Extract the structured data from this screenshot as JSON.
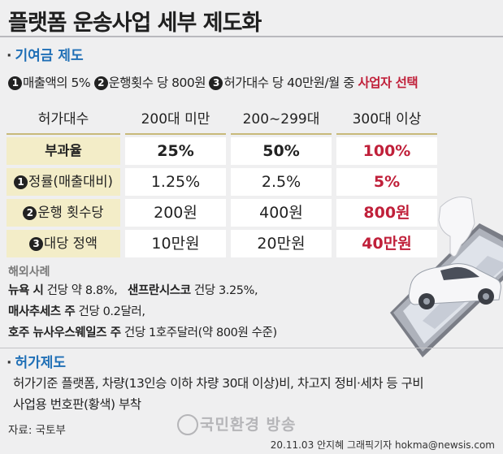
{
  "title": "플랫폼 운송사업 세부 제도화",
  "section1": {
    "dot": "·",
    "title": "기여금 제도"
  },
  "contribution_line": {
    "n1": "1",
    "t1": "매출액의 5%",
    "n2": "2",
    "t2": "운행횟수 당 800원",
    "n3": "3",
    "t3": "허가대수 당 40만원/월 중",
    "emph": "사업자 선택"
  },
  "table": {
    "header_label": "허가대수",
    "columns": [
      "200대 미만",
      "200∼299대",
      "300대 이상"
    ],
    "rows": [
      {
        "num": "",
        "label": "부과율",
        "values": [
          "25%",
          "50%",
          "100%"
        ]
      },
      {
        "num": "1",
        "label": "정률(매출대비)",
        "values": [
          "1.25%",
          "2.5%",
          "5%"
        ]
      },
      {
        "num": "2",
        "label": "운행 횟수당",
        "values": [
          "200원",
          "400원",
          "800원"
        ]
      },
      {
        "num": "3",
        "label": "대당 정액",
        "values": [
          "10만원",
          "20만원",
          "40만원"
        ]
      }
    ]
  },
  "overseas": {
    "title": "해외사례",
    "line1_a": "뉴욕 시",
    "line1_b": " 건당 약 8.8%,   ",
    "line1_c": "샌프란시스코",
    "line1_d": " 건당 3.25%,",
    "line2_a": "매사추세츠 주",
    "line2_b": " 건당 0.2달러,",
    "line3_a": "호주 뉴사우스웨일즈 주",
    "line3_b": " 건당 1호주달러(약 800원 수준)"
  },
  "section2": {
    "dot": "·",
    "title": "허가제도"
  },
  "license": {
    "line1": "허가기준 플랫폼, 차량(13인승 이하 차량 30대 이상)비, 차고지 정비·세차 등 구비",
    "line2": "사업용 번호판(황색) 부착"
  },
  "source": "자료: 국토부",
  "watermark": "국민환경 방송",
  "credit": "20.11.03 안지혜 그래픽기자 hokma@newsis.com",
  "colors": {
    "accent_blue": "#1f6fb6",
    "highlight_red": "#c0203a",
    "label_bg": "#f3edc8"
  }
}
